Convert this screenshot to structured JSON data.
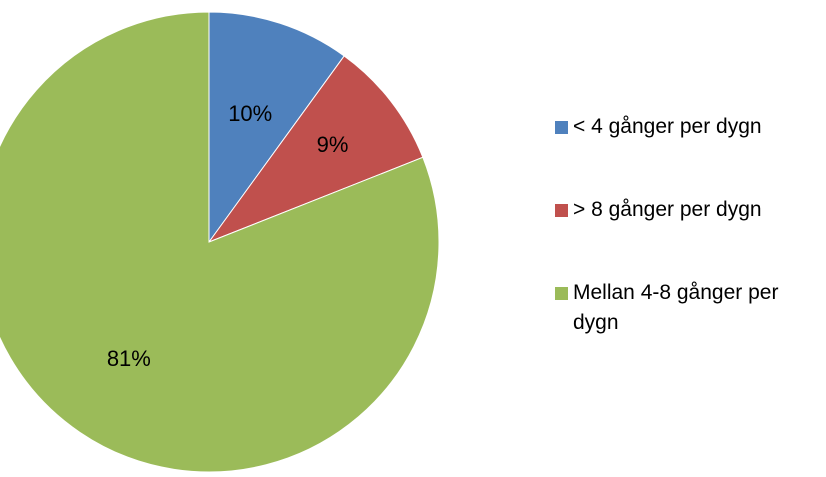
{
  "chart_data": {
    "type": "pie",
    "title": "",
    "categories": [
      "< 4 gånger per dygn",
      "> 8 gånger per dygn",
      "Mellan 4-8 gånger per dygn"
    ],
    "values": [
      10,
      9,
      81
    ],
    "value_labels": [
      "10%",
      "9%",
      "81%"
    ],
    "colors": [
      "#4F81BD",
      "#C0504D",
      "#9BBB59"
    ],
    "start_angle": "12 o'clock",
    "direction": "clockwise",
    "legend_position": "right"
  }
}
